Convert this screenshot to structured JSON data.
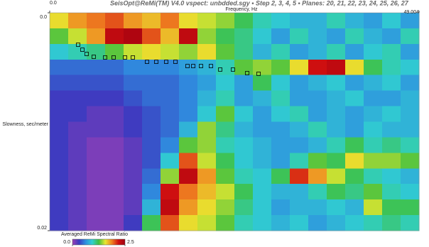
{
  "chart_data": {
    "type": "heatmap",
    "title": "SeisOpt@ReMi(TM) V4.0 vspect: unbdded.sgy • Step 2, 3, 4, 5 • Planes: 20, 21, 22, 23, 24, 25, 26, 27",
    "x_label": "Frequency, Hz",
    "y_label": "Slowness, sec/meter",
    "xlim": [
      0,
      49.004
    ],
    "xticks": [
      {
        "value": 0,
        "label": "0.0"
      },
      49.004
    ],
    "ylim": [
      0,
      0.02
    ],
    "yticks": [
      {
        "value": 0,
        "label": "0.0"
      },
      0.02
    ],
    "y_inverted": true,
    "values": [
      [
        1.6,
        1.8,
        1.9,
        2.0,
        1.8,
        1.7,
        1.9,
        1.6,
        1.5,
        1.4,
        1.2,
        1.0,
        0.9,
        0.8,
        0.8,
        1.0,
        0.8,
        0.7,
        0.9,
        0.7
      ],
      [
        1.3,
        1.5,
        1.8,
        2.3,
        2.4,
        2.0,
        1.7,
        2.3,
        1.4,
        1.2,
        1.1,
        0.9,
        0.7,
        1.0,
        0.8,
        0.7,
        1.0,
        0.8,
        0.7,
        1.0
      ],
      [
        0.9,
        1.0,
        1.1,
        1.3,
        1.5,
        1.6,
        1.5,
        1.4,
        1.6,
        1.3,
        1.1,
        0.8,
        1.0,
        0.7,
        0.8,
        1.0,
        0.7,
        0.9,
        1.0,
        0.7
      ],
      [
        0.5,
        0.5,
        0.5,
        0.5,
        0.6,
        0.6,
        0.6,
        0.7,
        0.8,
        1.0,
        1.3,
        1.4,
        1.3,
        1.6,
        2.2,
        2.3,
        1.6,
        1.2,
        1.0,
        0.9
      ],
      [
        0.4,
        0.4,
        0.4,
        0.4,
        0.5,
        0.5,
        0.5,
        0.6,
        0.7,
        0.9,
        0.7,
        1.2,
        0.9,
        0.7,
        0.8,
        0.9,
        0.7,
        0.8,
        0.9,
        0.7
      ],
      [
        0.3,
        0.3,
        0.3,
        0.3,
        0.4,
        0.5,
        0.5,
        0.6,
        0.8,
        1.0,
        0.7,
        0.8,
        1.0,
        0.7,
        0.7,
        0.8,
        0.9,
        0.7,
        0.7,
        0.8
      ],
      [
        0.3,
        0.3,
        0.2,
        0.2,
        0.3,
        0.4,
        0.5,
        0.6,
        0.9,
        1.3,
        0.9,
        0.7,
        0.9,
        1.0,
        0.7,
        0.8,
        0.7,
        0.8,
        0.9,
        0.8
      ],
      [
        0.3,
        0.2,
        0.2,
        0.2,
        0.3,
        0.4,
        0.5,
        0.8,
        1.4,
        1.1,
        0.8,
        0.7,
        0.7,
        0.8,
        1.0,
        0.8,
        0.7,
        0.9,
        0.8,
        0.8
      ],
      [
        0.3,
        0.2,
        0.1,
        0.1,
        0.2,
        0.4,
        0.6,
        1.3,
        1.4,
        1.0,
        0.9,
        0.8,
        0.7,
        0.7,
        0.8,
        1.0,
        1.2,
        1.0,
        1.1,
        1.0
      ],
      [
        0.3,
        0.2,
        0.1,
        0.1,
        0.2,
        0.4,
        0.9,
        2.0,
        1.5,
        1.2,
        0.9,
        0.8,
        0.7,
        1.0,
        1.3,
        1.2,
        1.6,
        1.4,
        1.4,
        1.3
      ],
      [
        0.3,
        0.2,
        0.1,
        0.1,
        0.2,
        0.5,
        1.4,
        2.3,
        1.8,
        1.3,
        1.0,
        0.9,
        1.2,
        2.1,
        1.8,
        1.5,
        1.2,
        1.0,
        0.9,
        0.8
      ],
      [
        0.3,
        0.2,
        0.1,
        0.1,
        0.2,
        0.6,
        2.2,
        1.9,
        1.7,
        1.5,
        1.2,
        0.9,
        0.8,
        0.8,
        1.0,
        1.2,
        1.1,
        1.3,
        1.0,
        0.9
      ],
      [
        0.3,
        0.2,
        0.1,
        0.1,
        0.2,
        0.8,
        2.3,
        1.8,
        1.6,
        1.4,
        1.1,
        0.9,
        0.7,
        0.8,
        0.8,
        0.9,
        0.8,
        1.5,
        1.2,
        1.2
      ],
      [
        0.3,
        0.2,
        0.1,
        0.1,
        0.3,
        1.2,
        2.0,
        1.6,
        1.5,
        1.3,
        1.0,
        0.9,
        0.8,
        0.9,
        0.7,
        0.8,
        0.9,
        1.0,
        1.1,
        1.0
      ]
    ],
    "colorbar": {
      "label": "Averaged ReMi Spectral Ratio",
      "lim": [
        0,
        2.5
      ],
      "ticks": [
        {
          "value": 0,
          "label": "0.0"
        },
        2.5
      ],
      "colors": [
        "#9b3fb5",
        "#3b3bc0",
        "#2f8fe0",
        "#30d0d0",
        "#40c040",
        "#e8e830",
        "#f08020",
        "#d01010",
        "#a00010"
      ]
    },
    "picks": {
      "x": [
        3.77,
        4.34,
        4.9,
        5.84,
        7.35,
        8.48,
        9.99,
        11.03,
        12.91,
        14.14,
        15.46,
        16.68,
        18.28,
        19.04,
        20.07,
        21.39,
        22.62,
        24.31,
        26.2,
        27.71
      ],
      "y": [
        0.00293,
        0.00339,
        0.00378,
        0.00404,
        0.0041,
        0.0041,
        0.0041,
        0.0041,
        0.0045,
        0.0045,
        0.0045,
        0.0045,
        0.00489,
        0.00489,
        0.00489,
        0.00489,
        0.00521,
        0.00521,
        0.00554,
        0.0056
      ],
      "color": "#000000"
    }
  }
}
